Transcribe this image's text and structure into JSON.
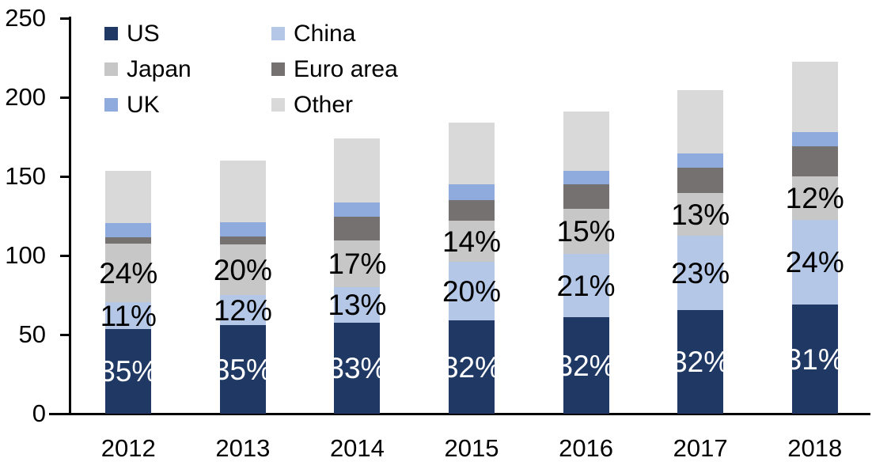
{
  "chart_data": {
    "type": "bar",
    "stacked": true,
    "title": "",
    "xlabel": "",
    "ylabel": "",
    "categories": [
      "2012",
      "2013",
      "2014",
      "2015",
      "2016",
      "2017",
      "2018"
    ],
    "series": [
      {
        "name": "US",
        "color": "#1f3864",
        "values": [
          53.5,
          56,
          57.5,
          59,
          61,
          65.5,
          69
        ],
        "labels": [
          "35%",
          "35%",
          "33%",
          "32%",
          "32%",
          "32%",
          "31%"
        ],
        "label_color": "#ffffff"
      },
      {
        "name": "China",
        "color": "#b4c7e7",
        "values": [
          17,
          19,
          22.5,
          37,
          40,
          47,
          53.5
        ],
        "labels": [
          "11%",
          "12%",
          "13%",
          "20%",
          "21%",
          "23%",
          "24%"
        ],
        "label_color": "#000000"
      },
      {
        "name": "Japan",
        "color": "#c7c7c7",
        "values": [
          37,
          32,
          29.5,
          26,
          28.5,
          27,
          27.5
        ],
        "labels": [
          "24%",
          "20%",
          "17%",
          "14%",
          "15%",
          "13%",
          "12%"
        ],
        "label_color": "#000000"
      },
      {
        "name": "Euro area",
        "color": "#767171",
        "values": [
          4,
          5,
          15,
          13,
          15.5,
          16,
          19
        ],
        "labels": null,
        "label_color": null
      },
      {
        "name": "UK",
        "color": "#8faadc",
        "values": [
          9,
          9,
          9,
          10,
          8.5,
          9,
          9
        ],
        "labels": null,
        "label_color": null
      },
      {
        "name": "Other",
        "color": "#d9d9d9",
        "values": [
          33,
          39,
          40.5,
          39,
          37.5,
          40,
          44.5
        ],
        "labels": null,
        "label_color": null
      }
    ],
    "totals": [
      153.5,
      160,
      174,
      184,
      191,
      204.5,
      222.5
    ],
    "ylim": [
      0,
      250
    ],
    "yticks": [
      0,
      50,
      100,
      150,
      200,
      250
    ],
    "ytick_labels": [
      "0",
      "50",
      "100",
      "150",
      "200",
      "250"
    ],
    "grid": false,
    "legend_position": "top-left",
    "legend_columns": 2,
    "axis_color": "#000000",
    "background_color": "#ffffff"
  }
}
